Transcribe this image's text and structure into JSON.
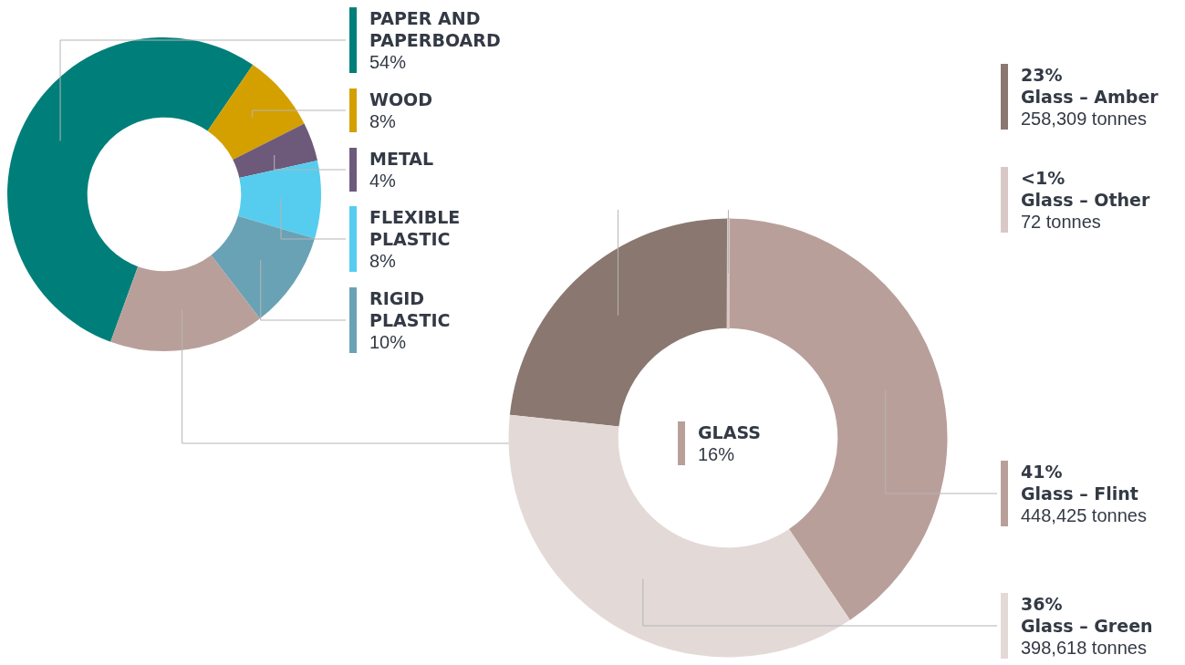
{
  "chart_data": [
    {
      "type": "donut",
      "categories": [
        "PAPER AND PAPERBOARD",
        "WOOD",
        "METAL",
        "FLEXIBLE PLASTIC",
        "RIGID PLASTIC",
        "GLASS"
      ],
      "values": [
        54,
        8,
        4,
        8,
        10,
        16
      ],
      "value_labels": [
        "54%",
        "8%",
        "4%",
        "8%",
        "10%",
        "16%"
      ],
      "colors": [
        "#007f7a",
        "#d4a000",
        "#6d5a7a",
        "#56cdef",
        "#6aa2b5",
        "#b99f9a"
      ],
      "legend": "right"
    },
    {
      "type": "donut",
      "categories": [
        "Glass – Amber",
        "Glass – Other",
        "Glass – Flint",
        "Glass – Green"
      ],
      "values": [
        258309,
        72,
        448425,
        398618
      ],
      "value_labels": [
        "258,309 tonnes",
        "72 tonnes",
        "448,425 tonnes",
        "398,618 tonnes"
      ],
      "colors": [
        "#8a7870",
        "#d9c9c6",
        "#b99f9a",
        "#e3dad8"
      ],
      "annotations": [
        "23%",
        "<1%",
        "41%",
        "36%"
      ],
      "legend": "right"
    }
  ]
}
